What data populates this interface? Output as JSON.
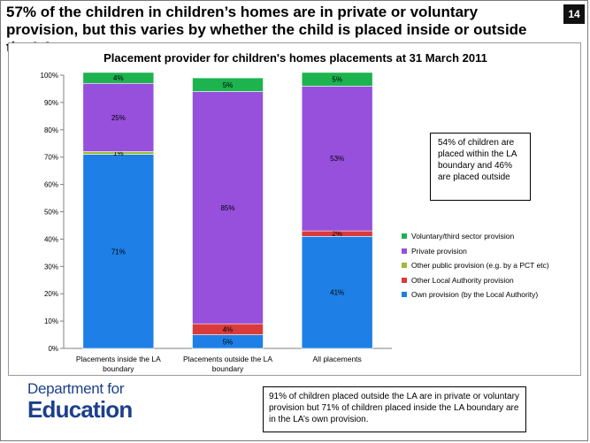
{
  "slide": {
    "headline": "57% of the children in children’s homes are in private or voluntary provision, but this varies by whether the child is placed inside or outside the LA area.",
    "page_number": "14"
  },
  "annotations": {
    "box1": "54% of children are placed within the LA boundary and 46% are placed outside",
    "box2": "91% of children placed outside the LA are in private or voluntary provision but 71% of children placed inside the LA boundary are in the LA’s own provision."
  },
  "logo": {
    "line1": "Department for",
    "line2": "Education"
  },
  "chart_data": {
    "type": "bar",
    "stacked": true,
    "title": "Placement provider for children's homes placements at 31 March 2011",
    "categories": [
      "Placements inside the LA boundary",
      "Placements outside the LA boundary",
      "All placements"
    ],
    "category_lines": [
      [
        "Placements inside the LA",
        "boundary"
      ],
      [
        "Placements outside the LA",
        "boundary"
      ],
      [
        "All placements"
      ]
    ],
    "ylim": [
      0,
      100
    ],
    "yticks": [
      "0%",
      "10%",
      "20%",
      "30%",
      "40%",
      "50%",
      "60%",
      "70%",
      "80%",
      "90%",
      "100%"
    ],
    "series": [
      {
        "name": "Own provision (by the Local Authority)",
        "color": "#1e7fe6",
        "values": [
          71,
          5,
          41
        ],
        "labels": [
          "71%",
          "5%",
          "41%"
        ]
      },
      {
        "name": "Other Local Authority provision",
        "color": "#d93a3a",
        "values": [
          0,
          4,
          2
        ],
        "labels": [
          "",
          "4%",
          "2%"
        ]
      },
      {
        "name": "Other public provision (e.g. by a PCT etc)",
        "color": "#9bbb3a",
        "values": [
          1,
          0,
          0
        ],
        "labels": [
          "1%",
          "",
          ""
        ]
      },
      {
        "name": "Private provision",
        "color": "#9650dc",
        "values": [
          25,
          85,
          53
        ],
        "labels": [
          "25%",
          "85%",
          "53%"
        ]
      },
      {
        "name": "Voluntary/third sector provision",
        "color": "#1db34f",
        "values": [
          4,
          5,
          5
        ],
        "labels": [
          "4%",
          "5%",
          "5%"
        ]
      }
    ],
    "legend_order": [
      4,
      3,
      2,
      1,
      0
    ],
    "legend_position": "right"
  }
}
